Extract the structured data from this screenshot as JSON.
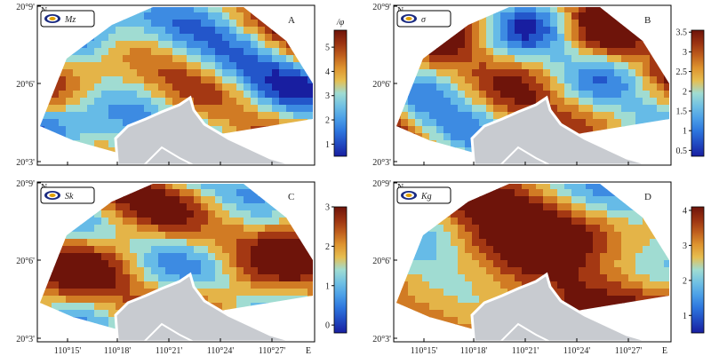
{
  "lat_labels": [
    "20°9'",
    "20°6'",
    "20°3'"
  ],
  "north_label": "N",
  "lon_labels": [
    "110°15'",
    "110°18'",
    "110°21'",
    "110°24'",
    "110°27'"
  ],
  "east_label": "E",
  "panels": [
    {
      "letter": "A",
      "symbol": "Mz",
      "cbar_title": "/φ",
      "ticks": [
        "1",
        "2",
        "3",
        "4",
        "5"
      ],
      "vmin": 0.5,
      "vmax": 5.7,
      "colormap": "jet-brown",
      "show_bottom_labels": false
    },
    {
      "letter": "B",
      "symbol": "σ",
      "cbar_title": "",
      "ticks": [
        "0.5",
        "1",
        "1.5",
        "2",
        "2.5",
        "3",
        "3.5"
      ],
      "vmin": 0.35,
      "vmax": 3.55,
      "colormap": "jet-brown",
      "show_bottom_labels": false
    },
    {
      "letter": "C",
      "symbol": "Sk",
      "cbar_title": "",
      "ticks": [
        "0",
        "1",
        "2",
        "3"
      ],
      "vmin": -0.2,
      "vmax": 3.0,
      "colormap": "jet-brown",
      "show_bottom_labels": true
    },
    {
      "letter": "D",
      "symbol": "Kg",
      "cbar_title": "",
      "ticks": [
        "1",
        "2",
        "3",
        "4"
      ],
      "vmin": 0.5,
      "vmax": 4.1,
      "colormap": "jet-brown",
      "show_bottom_labels": true
    }
  ],
  "colors": {
    "land": "#c8cbd0",
    "coast": "#ffffff",
    "frame": "#000000"
  }
}
